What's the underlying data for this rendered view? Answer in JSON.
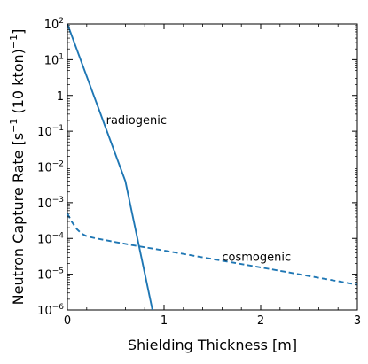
{
  "chart_data": {
    "type": "line",
    "title": "",
    "xlabel": "Shielding Thickness [m]",
    "ylabel": "Neutron Capture Rate [s⁻¹ (10 kton)⁻¹]",
    "ylabel_parts": {
      "prefix": "Neutron Capture Rate [s",
      "exp1": "−1",
      "middle": " (10 kton)",
      "exp2": "−1",
      "suffix": "]"
    },
    "x_scale": "linear",
    "y_scale": "log",
    "xlim": [
      0,
      3
    ],
    "ylim": [
      1e-06,
      100
    ],
    "x_ticks": [
      {
        "value": 0,
        "label": "0"
      },
      {
        "value": 1,
        "label": "1"
      },
      {
        "value": 2,
        "label": "2"
      },
      {
        "value": 3,
        "label": "3"
      }
    ],
    "y_ticks": [
      {
        "value": 100,
        "base": "10",
        "exp": "2"
      },
      {
        "value": 10,
        "base": "10",
        "exp": "1"
      },
      {
        "value": 1,
        "base": "1",
        "exp": ""
      },
      {
        "value": 0.1,
        "base": "10",
        "exp": "−1"
      },
      {
        "value": 0.01,
        "base": "10",
        "exp": "−2"
      },
      {
        "value": 0.001,
        "base": "10",
        "exp": "−3"
      },
      {
        "value": 0.0001,
        "base": "10",
        "exp": "−4"
      },
      {
        "value": 1e-05,
        "base": "10",
        "exp": "−5"
      },
      {
        "value": 1e-06,
        "base": "10",
        "exp": "−6"
      }
    ],
    "grid": false,
    "legend": "none",
    "series": [
      {
        "label": "radiogenic",
        "color": "#1f77b4",
        "dash": "solid",
        "x": [
          0,
          0.3,
          0.6,
          0.88
        ],
        "y": [
          100,
          0.631,
          0.00398,
          1e-06
        ]
      },
      {
        "label": "cosmogenic",
        "color": "#1f77b4",
        "dash": "dashed",
        "x": [
          0,
          0.05,
          0.1,
          0.15,
          0.2,
          0.3,
          0.5,
          0.7,
          1.0,
          1.5,
          2.0,
          2.5,
          3.0
        ],
        "y": [
          0.0005,
          0.00028,
          0.00018,
          0.000135,
          0.000115,
          0.0001,
          7.9e-05,
          6.3e-05,
          4.6e-05,
          2.66e-05,
          1.55e-05,
          8.9e-06,
          5.1e-06
        ]
      }
    ],
    "annotations": [
      {
        "text": "radiogenic",
        "x": 0.4,
        "y": 0.2
      },
      {
        "text": "cosmogenic",
        "x": 1.6,
        "y": 3e-05
      }
    ]
  }
}
